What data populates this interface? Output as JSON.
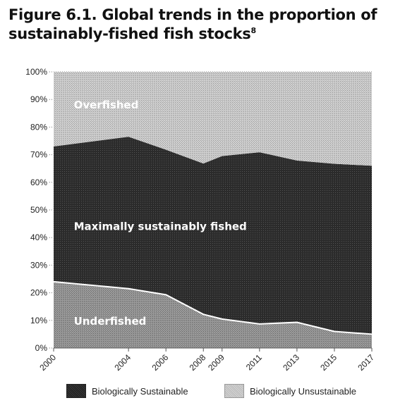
{
  "figure": {
    "title_line1": "Figure 6.1. Global trends in the proportion of",
    "title_line2": "sustainably-fished fish stocks",
    "title_footnote": "8"
  },
  "chart_data": {
    "type": "area",
    "stacked": true,
    "x": [
      2000,
      2004,
      2006,
      2008,
      2009,
      2011,
      2013,
      2015,
      2017
    ],
    "x_tick_labels": [
      "2000",
      "2004",
      "2006",
      "2008",
      "2009",
      "2011",
      "2013",
      "2015",
      "2017"
    ],
    "series": [
      {
        "name": "Underfished",
        "values": [
          24,
          21.5,
          19.3,
          12.2,
          10.5,
          8.7,
          9.3,
          6,
          5
        ]
      },
      {
        "name": "Maximally sustainably fished",
        "values": [
          49,
          55,
          52.5,
          54.6,
          59,
          62.2,
          58.6,
          60.7,
          61
        ]
      },
      {
        "name": "Overfished",
        "values": [
          27,
          23.5,
          28.2,
          33.2,
          30.5,
          29.1,
          32.1,
          33.3,
          34
        ]
      }
    ],
    "y_tick_labels": [
      "0%",
      "10%",
      "20%",
      "30%",
      "40%",
      "50%",
      "60%",
      "70%",
      "80%",
      "90%",
      "100%"
    ],
    "ylim": [
      0,
      100
    ],
    "grid": true,
    "legend": {
      "position": "bottom",
      "entries": [
        "Biologically Sustainable",
        "Biologically Unsustainable"
      ]
    },
    "colors": {
      "underfished": "#8a8a8a",
      "maximally_sustainable": "#2e2e2e",
      "overfished": "#c4c4c4",
      "boundary_line": "#ffffff"
    }
  }
}
